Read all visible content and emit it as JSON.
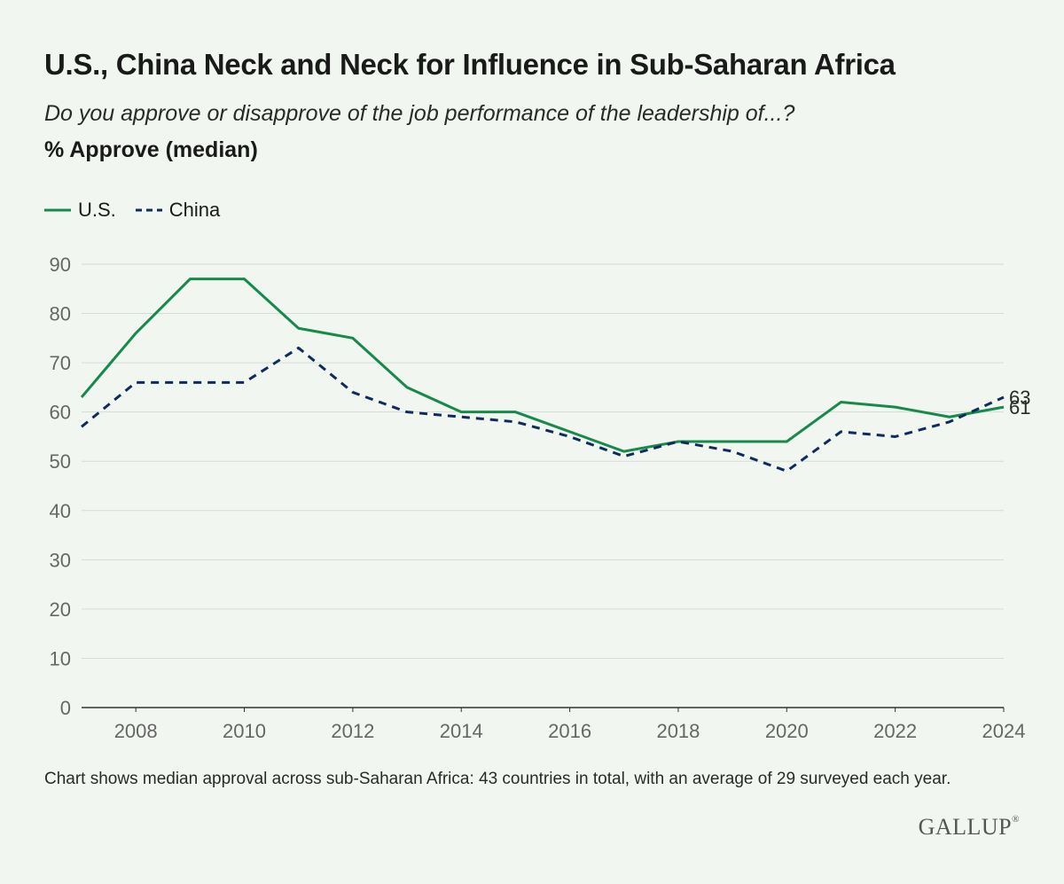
{
  "header": {
    "title": "U.S., China Neck and Neck for Influence in Sub-Saharan Africa",
    "subtitle": "Do you approve or disapprove of the job performance of the leadership of...?",
    "measure": "% Approve (median)"
  },
  "colors": {
    "us": "#168a4a",
    "china": "#0f2a5c",
    "grid": "#d5dbd5",
    "axis": "#333333"
  },
  "chart_data": {
    "type": "line",
    "title": "U.S., China Neck and Neck for Influence in Sub-Saharan Africa",
    "ylabel": "% Approve (median)",
    "xlabel": "",
    "x": [
      2007,
      2008,
      2009,
      2010,
      2011,
      2012,
      2013,
      2014,
      2015,
      2016,
      2017,
      2018,
      2019,
      2020,
      2021,
      2022,
      2023,
      2024
    ],
    "series": [
      {
        "name": "U.S.",
        "style": "solid",
        "values": [
          63,
          76,
          87,
          87,
          77,
          75,
          65,
          60,
          60,
          56,
          52,
          54,
          54,
          54,
          62,
          61,
          59,
          61
        ]
      },
      {
        "name": "China",
        "style": "dashed",
        "values": [
          57,
          66,
          66,
          66,
          73,
          64,
          60,
          59,
          58,
          55,
          51,
          54,
          52,
          48,
          56,
          55,
          58,
          63
        ]
      }
    ],
    "xticks": [
      "2008",
      "2010",
      "2012",
      "2014",
      "2016",
      "2018",
      "2020",
      "2022",
      "2024"
    ],
    "yticks": [
      "0",
      "10",
      "20",
      "30",
      "40",
      "50",
      "60",
      "70",
      "80",
      "90"
    ],
    "xlim": [
      2007,
      2024
    ],
    "ylim": [
      0,
      90
    ],
    "grid": true,
    "legend": "top-left",
    "end_labels": [
      {
        "series": "China",
        "text": "63"
      },
      {
        "series": "U.S.",
        "text": "61"
      }
    ]
  },
  "footnote": "Chart shows median approval across sub-Saharan Africa: 43 countries in total, with an average of 29 surveyed each year.",
  "logo": {
    "text": "GALLUP",
    "mark": "®"
  }
}
